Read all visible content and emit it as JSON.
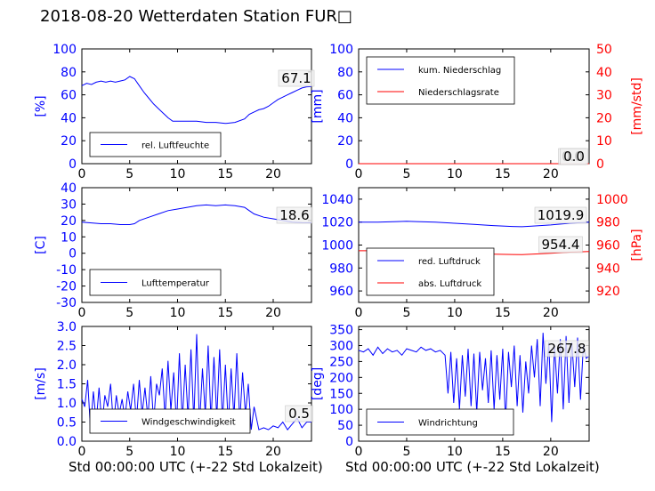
{
  "title": "2018-08-20 Wetterdaten Station FUR□",
  "xlabel": "Std 00:00:00 UTC (+-22 Std Lokalzeit)",
  "colors": {
    "left_axis": "#0000ff",
    "right_axis": "#ff0000",
    "blue_line": "#0000ff",
    "red_line": "#ff0000"
  },
  "chart_data": [
    {
      "type": "line",
      "panel": "humidity",
      "ylabel": "[%]",
      "ylim": [
        0,
        100
      ],
      "yticks": [
        0,
        20,
        40,
        60,
        80,
        100
      ],
      "xlim": [
        0,
        24
      ],
      "xticks": [
        0,
        5,
        10,
        15,
        20
      ],
      "legend": "bottom-left",
      "annotation": "67.1",
      "series": [
        {
          "name": "rel. Luftfeuchte",
          "axis": "left",
          "x": [
            0,
            0.5,
            1,
            1.5,
            2,
            2.5,
            3,
            3.5,
            4,
            4.5,
            5,
            5.5,
            6,
            6.5,
            7,
            7.5,
            8,
            8.5,
            9,
            9.5,
            10,
            11,
            12,
            13,
            14,
            15,
            16,
            17,
            17.5,
            18,
            18.5,
            19,
            19.5,
            20,
            20.5,
            21,
            21.5,
            22,
            22.5,
            23,
            23.5,
            24
          ],
          "y": [
            68,
            70,
            69,
            71,
            72,
            71,
            72,
            71,
            72,
            73,
            76,
            74,
            68,
            62,
            57,
            52,
            48,
            44,
            40,
            37,
            37,
            37,
            37,
            36,
            36,
            35,
            36,
            39,
            43,
            45,
            47,
            48,
            50,
            53,
            56,
            58,
            60,
            62,
            64,
            66,
            67,
            67.1
          ]
        }
      ]
    },
    {
      "type": "line",
      "panel": "precipitation",
      "ylabel": "[mm]",
      "ylabel_right": "[mm/std]",
      "ylim": [
        0,
        100
      ],
      "yticks": [
        0,
        20,
        40,
        60,
        80,
        100
      ],
      "ylim_right": [
        0,
        50
      ],
      "yticks_right": [
        0,
        10,
        20,
        30,
        40,
        50
      ],
      "xlim": [
        0,
        24
      ],
      "xticks": [
        0,
        5,
        10,
        15,
        20
      ],
      "legend": "top-left",
      "annotations": [
        "0.0",
        "0.0"
      ],
      "series": [
        {
          "name": "kum. Niederschlag",
          "axis": "left",
          "x": [
            0,
            24
          ],
          "y": [
            0,
            0
          ]
        },
        {
          "name": "Niederschlagsrate",
          "axis": "right",
          "x": [
            0,
            24
          ],
          "y": [
            0,
            0
          ]
        }
      ]
    },
    {
      "type": "line",
      "panel": "temperature",
      "ylabel": "[C]",
      "ylim": [
        -30,
        40
      ],
      "yticks": [
        -30,
        -20,
        -10,
        0,
        10,
        20,
        30,
        40
      ],
      "xlim": [
        0,
        24
      ],
      "xticks": [
        0,
        5,
        10,
        15,
        20
      ],
      "legend": "bottom-left",
      "annotation": "18.6",
      "series": [
        {
          "name": "Lufttemperatur",
          "axis": "left",
          "x": [
            0,
            1,
            2,
            3,
            4,
            5,
            5.5,
            6,
            7,
            8,
            9,
            10,
            11,
            12,
            13,
            14,
            15,
            16,
            17,
            17.5,
            18,
            19,
            20,
            21,
            22,
            23,
            24
          ],
          "y": [
            19,
            18.5,
            18,
            18,
            17.5,
            17.5,
            18,
            20,
            22,
            24,
            26,
            27,
            28,
            29,
            29.5,
            29,
            29.5,
            29,
            28,
            26,
            24,
            22,
            21,
            20,
            19,
            18.7,
            18.6
          ]
        }
      ]
    },
    {
      "type": "line",
      "panel": "pressure",
      "ylabel_right": "[hPa]",
      "ylim": [
        950,
        1050
      ],
      "yticks": [
        960,
        980,
        1000,
        1020,
        1040
      ],
      "ylim_right": [
        910,
        1010
      ],
      "yticks_right": [
        920,
        940,
        960,
        980,
        1000
      ],
      "xlim": [
        0,
        24
      ],
      "xticks": [
        0,
        5,
        10,
        15,
        20
      ],
      "legend": "bottom-left",
      "annotations": [
        "1019.9",
        "954.4"
      ],
      "series": [
        {
          "name": "red. Luftdruck",
          "axis": "left",
          "x": [
            0,
            2,
            4,
            5,
            6,
            8,
            10,
            12,
            14,
            16,
            17,
            18,
            20,
            22,
            24
          ],
          "y": [
            1020,
            1020,
            1020.5,
            1020.8,
            1020.5,
            1020,
            1019,
            1018,
            1017,
            1016.2,
            1016,
            1016.5,
            1017.5,
            1019,
            1019.9
          ]
        },
        {
          "name": "abs. Luftdruck",
          "axis": "right",
          "x": [
            0,
            2,
            4,
            5,
            6,
            8,
            10,
            12,
            14,
            16,
            17,
            18,
            20,
            22,
            24
          ],
          "y": [
            955,
            955,
            955.3,
            955.5,
            955.2,
            954.5,
            953.5,
            952.5,
            952,
            951.8,
            951.7,
            952,
            952.8,
            953.8,
            954.4
          ]
        }
      ]
    },
    {
      "type": "line",
      "panel": "wind_speed",
      "ylabel": "[m/s]",
      "ylim": [
        0,
        3.0
      ],
      "yticks": [
        0.0,
        0.5,
        1.0,
        1.5,
        2.0,
        2.5,
        3.0
      ],
      "xlim": [
        0,
        24
      ],
      "xticks": [
        0,
        5,
        10,
        15,
        20
      ],
      "legend": "bottom-center",
      "annotation": "0.5",
      "series": [
        {
          "name": "Windgeschwindigkeit",
          "axis": "left",
          "x": [
            0,
            0.3,
            0.6,
            0.9,
            1.2,
            1.5,
            1.8,
            2.1,
            2.4,
            2.7,
            3.0,
            3.3,
            3.6,
            3.9,
            4.2,
            4.5,
            4.8,
            5.1,
            5.4,
            5.7,
            6.0,
            6.3,
            6.6,
            6.9,
            7.2,
            7.5,
            7.8,
            8.1,
            8.4,
            8.7,
            9.0,
            9.3,
            9.6,
            9.9,
            10.2,
            10.5,
            10.8,
            11.1,
            11.4,
            11.7,
            12.0,
            12.3,
            12.6,
            12.9,
            13.2,
            13.5,
            13.8,
            14.1,
            14.4,
            14.7,
            15.0,
            15.3,
            15.6,
            15.9,
            16.2,
            16.5,
            16.8,
            17.1,
            17.4,
            17.7,
            18.0,
            18.5,
            19,
            19.5,
            20,
            20.5,
            21,
            21.5,
            22,
            22.5,
            23,
            23.5,
            24
          ],
          "y": [
            1.1,
            0.9,
            1.6,
            0.3,
            1.3,
            0.5,
            1.4,
            0.4,
            1.2,
            0.9,
            1.5,
            0.4,
            1.2,
            0.7,
            1.1,
            0.6,
            1.3,
            0.8,
            1.5,
            0.5,
            1.6,
            0.7,
            1.4,
            0.6,
            1.7,
            0.5,
            1.5,
            1.2,
            1.9,
            0.6,
            2.1,
            0.8,
            1.8,
            0.4,
            2.3,
            0.5,
            2.0,
            0.6,
            2.4,
            0.5,
            2.8,
            0.4,
            1.9,
            0.7,
            2.5,
            0.5,
            2.2,
            0.6,
            2.4,
            0.5,
            2.0,
            0.4,
            1.9,
            0.6,
            2.3,
            0.5,
            1.8,
            0.7,
            1.5,
            0.3,
            0.9,
            0.3,
            0.35,
            0.3,
            0.4,
            0.35,
            0.5,
            0.3,
            0.45,
            0.6,
            0.35,
            0.5,
            0.5
          ]
        }
      ]
    },
    {
      "type": "line",
      "panel": "wind_direction",
      "ylabel": "[deg]",
      "ylim": [
        0,
        360
      ],
      "yticks": [
        0,
        50,
        100,
        150,
        200,
        250,
        300,
        350
      ],
      "xlim": [
        0,
        24
      ],
      "xticks": [
        0,
        5,
        10,
        15,
        20
      ],
      "legend": "bottom-left",
      "annotation": "267.8",
      "series": [
        {
          "name": "Windrichtung",
          "axis": "left",
          "x": [
            0,
            0.5,
            1,
            1.5,
            2,
            2.5,
            3,
            3.5,
            4,
            4.5,
            5,
            5.5,
            6,
            6.5,
            7,
            7.5,
            8,
            8.5,
            9,
            9.3,
            9.6,
            9.9,
            10.2,
            10.5,
            10.8,
            11.1,
            11.4,
            11.7,
            12.0,
            12.3,
            12.6,
            12.9,
            13.2,
            13.5,
            13.8,
            14.1,
            14.4,
            14.7,
            15.0,
            15.3,
            15.6,
            15.9,
            16.2,
            16.5,
            16.8,
            17.1,
            17.4,
            17.7,
            18.0,
            18.3,
            18.6,
            18.9,
            19.2,
            19.5,
            19.8,
            20.1,
            20.4,
            20.7,
            21.0,
            21.3,
            21.6,
            21.9,
            22.2,
            22.5,
            22.8,
            23.1,
            23.4,
            23.7,
            24
          ],
          "y": [
            285,
            280,
            290,
            270,
            295,
            275,
            290,
            280,
            285,
            270,
            290,
            285,
            280,
            295,
            285,
            290,
            280,
            285,
            270,
            150,
            280,
            120,
            260,
            100,
            270,
            140,
            290,
            110,
            275,
            90,
            280,
            160,
            260,
            120,
            285,
            100,
            270,
            130,
            290,
            60,
            280,
            170,
            300,
            110,
            270,
            90,
            250,
            150,
            300,
            200,
            320,
            110,
            340,
            180,
            310,
            60,
            300,
            150,
            320,
            100,
            330,
            120,
            310,
            170,
            325,
            130,
            300,
            260,
            268
          ]
        }
      ]
    }
  ]
}
